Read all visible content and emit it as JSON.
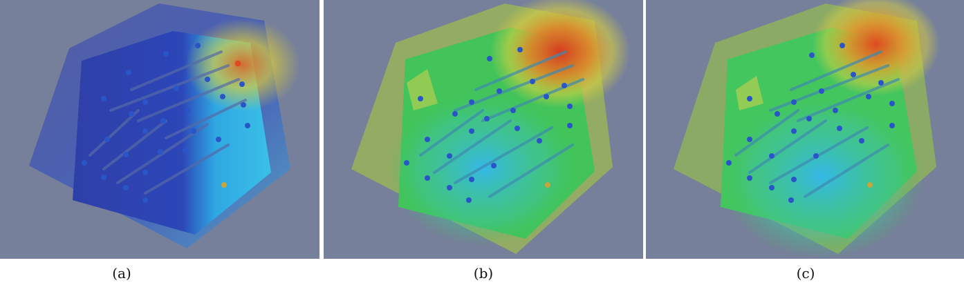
{
  "figure": {
    "panels": [
      {
        "id": "a",
        "caption": "(a)",
        "scheme": "blue"
      },
      {
        "id": "b",
        "caption": "(b)",
        "scheme": "green"
      },
      {
        "id": "c",
        "caption": "(c)",
        "scheme": "green2"
      }
    ]
  },
  "colors": {
    "background": "#76809a",
    "deep_blue": "#2c3fb0",
    "light_blue": "#35b8e8",
    "green": "#3cc45a",
    "yellow": "#d8d040",
    "red": "#d83a20",
    "sensor_blue": "#2a55c8"
  }
}
